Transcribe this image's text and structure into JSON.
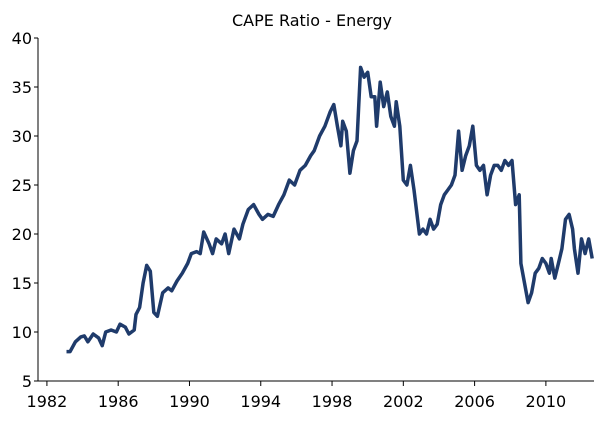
{
  "chart_data": {
    "type": "line",
    "title": "CAPE Ratio - Energy",
    "color": "#1f3b6b",
    "x": [
      1983.1,
      1983.3,
      1983.6,
      1983.9,
      1984.1,
      1984.3,
      1984.6,
      1984.9,
      1985.1,
      1985.3,
      1985.6,
      1985.9,
      1986.1,
      1986.4,
      1986.6,
      1986.9,
      1987.0,
      1987.2,
      1987.4,
      1987.6,
      1987.8,
      1988.0,
      1988.2,
      1988.5,
      1988.8,
      1989.0,
      1989.3,
      1989.6,
      1989.9,
      1990.1,
      1990.4,
      1990.6,
      1990.8,
      1991.1,
      1991.3,
      1991.5,
      1991.8,
      1992.0,
      1992.2,
      1992.5,
      1992.8,
      1993.0,
      1993.3,
      1993.6,
      1993.9,
      1994.1,
      1994.4,
      1994.7,
      1995.0,
      1995.3,
      1995.6,
      1995.9,
      1996.2,
      1996.5,
      1996.8,
      1997.0,
      1997.3,
      1997.6,
      1997.9,
      1998.1,
      1998.3,
      1998.5,
      1998.6,
      1998.8,
      1999.0,
      1999.2,
      1999.4,
      1999.6,
      1999.8,
      2000.0,
      2000.2,
      2000.4,
      2000.5,
      2000.7,
      2000.9,
      2001.1,
      2001.3,
      2001.5,
      2001.6,
      2001.8,
      2002.0,
      2002.2,
      2002.4,
      2002.6,
      2002.9,
      2003.1,
      2003.3,
      2003.5,
      2003.7,
      2003.9,
      2004.1,
      2004.3,
      2004.5,
      2004.7,
      2004.9,
      2005.1,
      2005.3,
      2005.5,
      2005.7,
      2005.9,
      2006.1,
      2006.3,
      2006.5,
      2006.7,
      2006.9,
      2007.1,
      2007.3,
      2007.5,
      2007.7,
      2007.9,
      2008.1,
      2008.3,
      2008.5,
      2008.6,
      2008.8,
      2009.0,
      2009.2,
      2009.4,
      2009.6,
      2009.8,
      2010.0,
      2010.2,
      2010.3,
      2010.5,
      2010.7,
      2010.9,
      2011.1,
      2011.3,
      2011.5,
      2011.6,
      2011.8,
      2012.0,
      2012.2,
      2012.4,
      2012.6
    ],
    "values": [
      8,
      8,
      9,
      9.5,
      9.6,
      9,
      9.8,
      9.4,
      8.6,
      10,
      10.2,
      10,
      10.8,
      10.5,
      9.8,
      10.2,
      11.8,
      12.5,
      15,
      16.8,
      16.2,
      12,
      11.6,
      14,
      14.5,
      14.2,
      15.2,
      16,
      17,
      18,
      18.2,
      18,
      20.2,
      19,
      18,
      19.5,
      19,
      20,
      18,
      20.5,
      19.5,
      21,
      22.5,
      23,
      22,
      21.5,
      22,
      21.8,
      23,
      24,
      25.5,
      25,
      26.5,
      27,
      28,
      28.5,
      30,
      31,
      32.5,
      33.2,
      31,
      29,
      31.5,
      30.5,
      26.2,
      28.5,
      29.5,
      37,
      36,
      36.5,
      34,
      34,
      31,
      35.5,
      33,
      34.5,
      32,
      31,
      33.5,
      31,
      25.5,
      25,
      27,
      24.5,
      20,
      20.5,
      20,
      21.5,
      20.5,
      21,
      23,
      24,
      24.5,
      25,
      26,
      30.5,
      26.5,
      28,
      29,
      31,
      27,
      26.5,
      27,
      24,
      26,
      27,
      27,
      26.5,
      27.5,
      27,
      27.5,
      23,
      24,
      17,
      15,
      13,
      14,
      16,
      16.5,
      17.5,
      17,
      16,
      17.5,
      15.5,
      17,
      18.5,
      21.5,
      22,
      20.5,
      18.5,
      16,
      19.5,
      18,
      19.5,
      17.5
    ],
    "xlim": [
      1981.5,
      2012.7
    ],
    "xticks": [
      1982,
      1986,
      1990,
      1994,
      1998,
      2002,
      2006,
      2010
    ],
    "ylim": [
      5,
      40
    ],
    "yticks": [
      5,
      10,
      15,
      20,
      25,
      30,
      35,
      40
    ]
  }
}
